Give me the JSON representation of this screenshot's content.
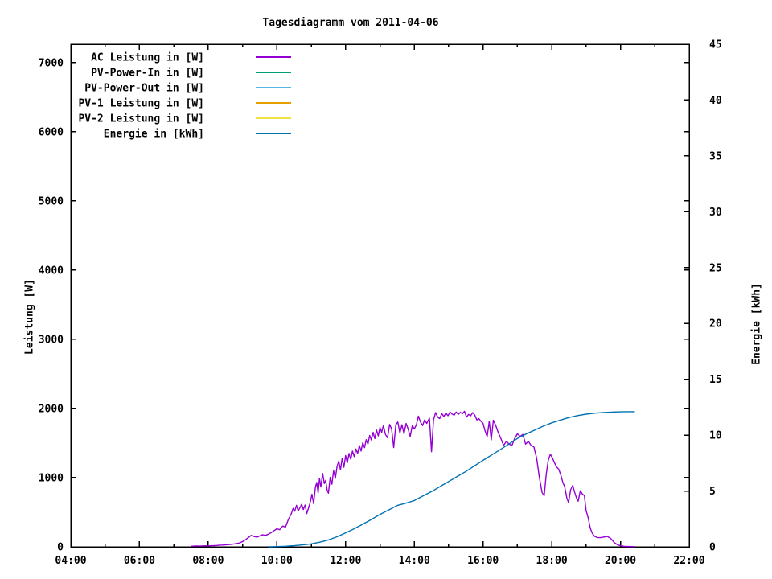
{
  "chart_data": {
    "type": "line",
    "title": "Tagesdiagramm vom 2011-04-06",
    "grid": false,
    "legend_position": "top-left-inside",
    "x_axis": {
      "range_hours": [
        4,
        22
      ],
      "major_ticks": [
        {
          "h": 4,
          "label": "04:00"
        },
        {
          "h": 6,
          "label": "06:00"
        },
        {
          "h": 8,
          "label": "08:00"
        },
        {
          "h": 10,
          "label": "10:00"
        },
        {
          "h": 12,
          "label": "12:00"
        },
        {
          "h": 14,
          "label": "14:00"
        },
        {
          "h": 16,
          "label": "16:00"
        },
        {
          "h": 18,
          "label": "18:00"
        },
        {
          "h": 20,
          "label": "20:00"
        },
        {
          "h": 22,
          "label": "22:00"
        }
      ],
      "minor_ticks": [
        5,
        7,
        9,
        11,
        13,
        15,
        17,
        19,
        21
      ]
    },
    "y_axis": {
      "label": "Leistung [W]",
      "range": [
        0,
        7267
      ],
      "ticks": [
        0,
        1000,
        2000,
        3000,
        4000,
        5000,
        6000,
        7000
      ]
    },
    "y2_axis": {
      "label": "Energie [kWh]",
      "range": [
        0,
        45
      ],
      "ticks": [
        0,
        5,
        10,
        15,
        20,
        25,
        30,
        35,
        40,
        45
      ]
    },
    "series": [
      {
        "name": "AC Leistung in [W]",
        "color": "#9400D3",
        "axis": "y",
        "points": [
          [
            7.5,
            8
          ],
          [
            7.58,
            10
          ],
          [
            7.67,
            12
          ],
          [
            7.75,
            10
          ],
          [
            7.83,
            13
          ],
          [
            7.92,
            15
          ],
          [
            8.0,
            13
          ],
          [
            8.08,
            16
          ],
          [
            8.17,
            18
          ],
          [
            8.25,
            20
          ],
          [
            8.33,
            24
          ],
          [
            8.42,
            26
          ],
          [
            8.5,
            28
          ],
          [
            8.58,
            32
          ],
          [
            8.67,
            36
          ],
          [
            8.75,
            42
          ],
          [
            8.83,
            48
          ],
          [
            8.92,
            58
          ],
          [
            9.0,
            75
          ],
          [
            9.08,
            100
          ],
          [
            9.17,
            135
          ],
          [
            9.25,
            165
          ],
          [
            9.33,
            150
          ],
          [
            9.42,
            140
          ],
          [
            9.5,
            158
          ],
          [
            9.58,
            175
          ],
          [
            9.67,
            165
          ],
          [
            9.75,
            182
          ],
          [
            9.83,
            205
          ],
          [
            9.92,
            235
          ],
          [
            10.0,
            262
          ],
          [
            10.08,
            248
          ],
          [
            10.17,
            300
          ],
          [
            10.25,
            285
          ],
          [
            10.33,
            390
          ],
          [
            10.42,
            480
          ],
          [
            10.47,
            555
          ],
          [
            10.52,
            515
          ],
          [
            10.57,
            600
          ],
          [
            10.62,
            520
          ],
          [
            10.67,
            565
          ],
          [
            10.72,
            615
          ],
          [
            10.77,
            540
          ],
          [
            10.82,
            605
          ],
          [
            10.87,
            480
          ],
          [
            10.92,
            560
          ],
          [
            10.97,
            645
          ],
          [
            11.02,
            760
          ],
          [
            11.07,
            625
          ],
          [
            11.12,
            860
          ],
          [
            11.16,
            930
          ],
          [
            11.2,
            780
          ],
          [
            11.24,
            990
          ],
          [
            11.28,
            865
          ],
          [
            11.33,
            1060
          ],
          [
            11.38,
            915
          ],
          [
            11.42,
            960
          ],
          [
            11.46,
            825
          ],
          [
            11.5,
            775
          ],
          [
            11.55,
            1005
          ],
          [
            11.6,
            905
          ],
          [
            11.65,
            1100
          ],
          [
            11.7,
            990
          ],
          [
            11.75,
            1160
          ],
          [
            11.8,
            1240
          ],
          [
            11.85,
            1115
          ],
          [
            11.9,
            1280
          ],
          [
            11.95,
            1150
          ],
          [
            12.0,
            1320
          ],
          [
            12.05,
            1215
          ],
          [
            12.1,
            1350
          ],
          [
            12.15,
            1265
          ],
          [
            12.2,
            1385
          ],
          [
            12.25,
            1305
          ],
          [
            12.3,
            1415
          ],
          [
            12.35,
            1350
          ],
          [
            12.4,
            1465
          ],
          [
            12.45,
            1385
          ],
          [
            12.5,
            1505
          ],
          [
            12.55,
            1435
          ],
          [
            12.6,
            1550
          ],
          [
            12.65,
            1485
          ],
          [
            12.7,
            1610
          ],
          [
            12.75,
            1545
          ],
          [
            12.8,
            1655
          ],
          [
            12.85,
            1565
          ],
          [
            12.9,
            1690
          ],
          [
            12.95,
            1605
          ],
          [
            13.0,
            1725
          ],
          [
            13.05,
            1655
          ],
          [
            13.1,
            1755
          ],
          [
            13.16,
            1625
          ],
          [
            13.22,
            1575
          ],
          [
            13.28,
            1770
          ],
          [
            13.34,
            1705
          ],
          [
            13.4,
            1435
          ],
          [
            13.46,
            1765
          ],
          [
            13.52,
            1805
          ],
          [
            13.58,
            1645
          ],
          [
            13.64,
            1765
          ],
          [
            13.7,
            1635
          ],
          [
            13.76,
            1785
          ],
          [
            13.82,
            1705
          ],
          [
            13.88,
            1595
          ],
          [
            13.94,
            1755
          ],
          [
            14.0,
            1705
          ],
          [
            14.06,
            1765
          ],
          [
            14.12,
            1890
          ],
          [
            14.18,
            1805
          ],
          [
            14.24,
            1755
          ],
          [
            14.3,
            1835
          ],
          [
            14.36,
            1785
          ],
          [
            14.44,
            1860
          ],
          [
            14.5,
            1375
          ],
          [
            14.56,
            1835
          ],
          [
            14.62,
            1940
          ],
          [
            14.68,
            1875
          ],
          [
            14.74,
            1855
          ],
          [
            14.8,
            1925
          ],
          [
            14.86,
            1885
          ],
          [
            14.92,
            1935
          ],
          [
            14.98,
            1895
          ],
          [
            15.04,
            1950
          ],
          [
            15.1,
            1920
          ],
          [
            15.16,
            1905
          ],
          [
            15.22,
            1950
          ],
          [
            15.28,
            1915
          ],
          [
            15.34,
            1945
          ],
          [
            15.4,
            1925
          ],
          [
            15.46,
            1960
          ],
          [
            15.52,
            1875
          ],
          [
            15.58,
            1915
          ],
          [
            15.64,
            1895
          ],
          [
            15.7,
            1940
          ],
          [
            15.76,
            1905
          ],
          [
            15.82,
            1835
          ],
          [
            15.88,
            1855
          ],
          [
            15.94,
            1815
          ],
          [
            16.0,
            1785
          ],
          [
            16.06,
            1675
          ],
          [
            16.12,
            1595
          ],
          [
            16.18,
            1815
          ],
          [
            16.24,
            1545
          ],
          [
            16.3,
            1830
          ],
          [
            16.37,
            1755
          ],
          [
            16.44,
            1655
          ],
          [
            16.52,
            1565
          ],
          [
            16.6,
            1465
          ],
          [
            16.68,
            1525
          ],
          [
            16.76,
            1485
          ],
          [
            16.84,
            1465
          ],
          [
            16.92,
            1565
          ],
          [
            17.0,
            1635
          ],
          [
            17.08,
            1595
          ],
          [
            17.16,
            1625
          ],
          [
            17.24,
            1485
          ],
          [
            17.32,
            1525
          ],
          [
            17.4,
            1465
          ],
          [
            17.48,
            1445
          ],
          [
            17.56,
            1285
          ],
          [
            17.64,
            1005
          ],
          [
            17.72,
            785
          ],
          [
            17.78,
            740
          ],
          [
            17.84,
            1055
          ],
          [
            17.9,
            1255
          ],
          [
            17.96,
            1340
          ],
          [
            18.02,
            1285
          ],
          [
            18.08,
            1215
          ],
          [
            18.14,
            1155
          ],
          [
            18.2,
            1125
          ],
          [
            18.26,
            1045
          ],
          [
            18.32,
            935
          ],
          [
            18.38,
            865
          ],
          [
            18.44,
            705
          ],
          [
            18.49,
            640
          ],
          [
            18.55,
            825
          ],
          [
            18.61,
            890
          ],
          [
            18.66,
            800
          ],
          [
            18.72,
            705
          ],
          [
            18.77,
            660
          ],
          [
            18.83,
            810
          ],
          [
            18.89,
            765
          ],
          [
            18.95,
            740
          ],
          [
            19.0,
            525
          ],
          [
            19.06,
            420
          ],
          [
            19.12,
            270
          ],
          [
            19.18,
            195
          ],
          [
            19.24,
            155
          ],
          [
            19.32,
            135
          ],
          [
            19.42,
            132
          ],
          [
            19.52,
            142
          ],
          [
            19.62,
            150
          ],
          [
            19.72,
            120
          ],
          [
            19.82,
            62
          ],
          [
            19.92,
            28
          ],
          [
            20.02,
            14
          ],
          [
            20.12,
            6
          ],
          [
            20.27,
            4
          ],
          [
            20.42,
            2
          ]
        ]
      },
      {
        "name": "PV-Power-In in [W]",
        "color": "#009E73",
        "axis": "y",
        "points": []
      },
      {
        "name": "PV-Power-Out in [W]",
        "color": "#56B4E9",
        "axis": "y",
        "points": []
      },
      {
        "name": "PV-1 Leistung in [W]",
        "color": "#E69F00",
        "axis": "y",
        "points": []
      },
      {
        "name": "PV-2 Leistung in [W]",
        "color": "#F0E442",
        "axis": "y",
        "points": []
      },
      {
        "name": "Energie in [kWh]",
        "color": "#0072B2",
        "axis": "y2",
        "points": [
          [
            9.75,
            0
          ],
          [
            10.0,
            0.02
          ],
          [
            10.25,
            0.05
          ],
          [
            10.5,
            0.1
          ],
          [
            10.75,
            0.17
          ],
          [
            11.0,
            0.27
          ],
          [
            11.25,
            0.42
          ],
          [
            11.5,
            0.62
          ],
          [
            11.75,
            0.9
          ],
          [
            12.0,
            1.25
          ],
          [
            12.25,
            1.62
          ],
          [
            12.5,
            2.02
          ],
          [
            12.75,
            2.45
          ],
          [
            13.0,
            2.9
          ],
          [
            13.25,
            3.3
          ],
          [
            13.5,
            3.7
          ],
          [
            13.75,
            3.9
          ],
          [
            14.0,
            4.15
          ],
          [
            14.25,
            4.55
          ],
          [
            14.5,
            4.95
          ],
          [
            14.75,
            5.4
          ],
          [
            15.0,
            5.85
          ],
          [
            15.25,
            6.3
          ],
          [
            15.5,
            6.75
          ],
          [
            15.75,
            7.25
          ],
          [
            16.0,
            7.75
          ],
          [
            16.25,
            8.22
          ],
          [
            16.5,
            8.7
          ],
          [
            16.75,
            9.2
          ],
          [
            17.0,
            9.7
          ],
          [
            17.25,
            10.1
          ],
          [
            17.5,
            10.45
          ],
          [
            17.75,
            10.8
          ],
          [
            18.0,
            11.1
          ],
          [
            18.25,
            11.35
          ],
          [
            18.5,
            11.58
          ],
          [
            18.75,
            11.75
          ],
          [
            19.0,
            11.88
          ],
          [
            19.25,
            11.97
          ],
          [
            19.5,
            12.03
          ],
          [
            19.75,
            12.07
          ],
          [
            20.0,
            12.09
          ],
          [
            20.2,
            12.1
          ],
          [
            20.42,
            12.1
          ]
        ]
      }
    ]
  }
}
